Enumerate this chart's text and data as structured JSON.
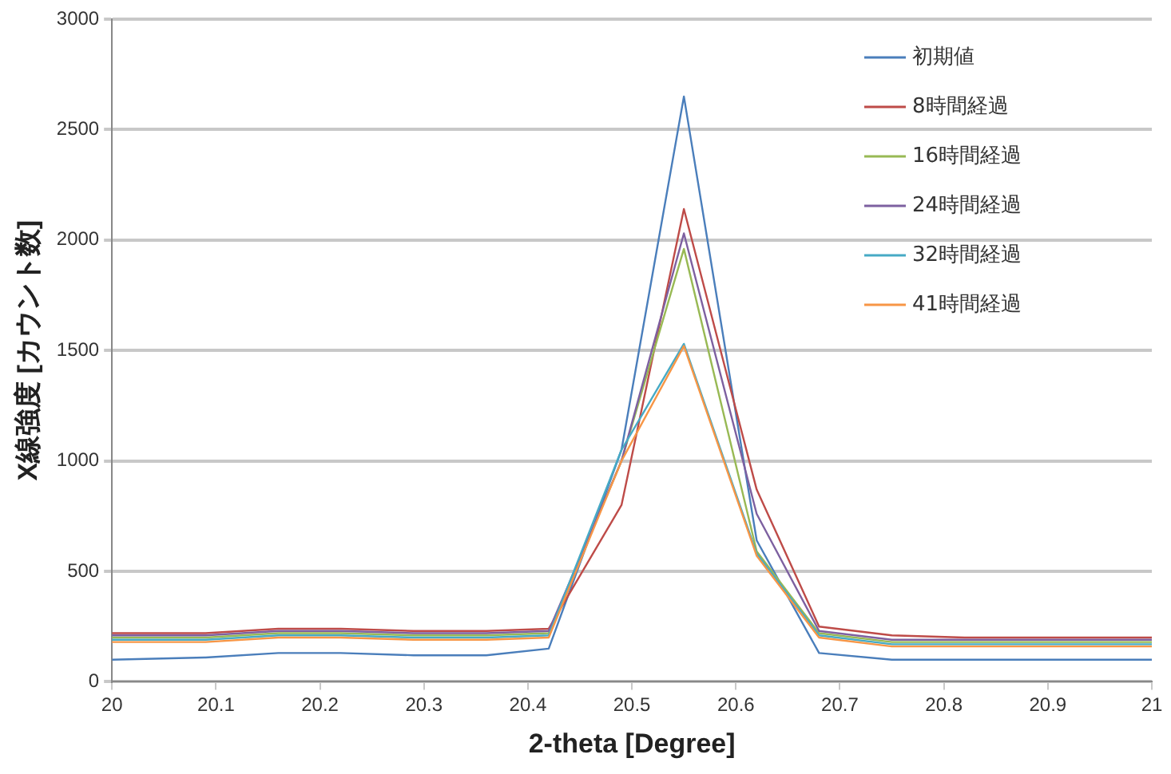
{
  "chart_data": {
    "type": "line",
    "xlabel": "2-theta [Degree]",
    "ylabel": "X線強度 [カウント数]",
    "x": [
      20,
      20.09,
      20.16,
      20.22,
      20.29,
      20.36,
      20.42,
      20.49,
      20.55,
      20.62,
      20.68,
      20.75,
      20.82,
      20.88,
      20.95,
      21
    ],
    "series": [
      {
        "name": "初期値",
        "color": "#4a7ebb",
        "values": [
          100,
          110,
          130,
          130,
          120,
          120,
          150,
          1050,
          2650,
          640,
          130,
          100,
          100,
          100,
          100,
          100
        ]
      },
      {
        "name": "8時間経過",
        "color": "#be4b48",
        "values": [
          220,
          220,
          240,
          240,
          230,
          230,
          240,
          800,
          2140,
          870,
          250,
          210,
          200,
          200,
          200,
          200
        ]
      },
      {
        "name": "16時間経過",
        "color": "#98b954",
        "values": [
          200,
          200,
          220,
          220,
          210,
          210,
          220,
          1000,
          1960,
          590,
          220,
          180,
          180,
          180,
          180,
          180
        ]
      },
      {
        "name": "24時間経過",
        "color": "#7d60a0",
        "values": [
          210,
          210,
          230,
          230,
          220,
          220,
          230,
          1000,
          2030,
          760,
          230,
          190,
          190,
          190,
          190,
          190
        ]
      },
      {
        "name": "32時間経過",
        "color": "#46aac5",
        "values": [
          190,
          190,
          210,
          210,
          200,
          200,
          210,
          1050,
          1530,
          580,
          210,
          170,
          170,
          170,
          170,
          170
        ]
      },
      {
        "name": "41時間経過",
        "color": "#f79646",
        "values": [
          180,
          180,
          200,
          200,
          190,
          190,
          200,
          1000,
          1520,
          570,
          200,
          160,
          160,
          160,
          160,
          160
        ]
      }
    ],
    "xlim": [
      20,
      21
    ],
    "xticks": [
      20,
      20.1,
      20.2,
      20.3,
      20.4,
      20.5,
      20.6,
      20.7,
      20.8,
      20.9,
      21
    ],
    "ylim": [
      0,
      3000
    ],
    "yticks": [
      0,
      500,
      1000,
      1500,
      2000,
      2500,
      3000
    ],
    "grid": "y",
    "legend": "top right",
    "marker": "none",
    "line_style": "solid"
  }
}
